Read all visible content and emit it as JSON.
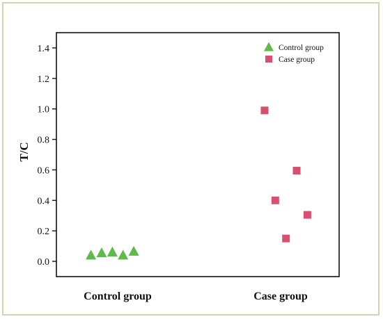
{
  "chart_data": {
    "type": "scatter",
    "title": "",
    "xlabel": "",
    "ylabel": "T/C",
    "categories": [
      "Control group",
      "Case group"
    ],
    "ylim": [
      -0.1,
      1.5
    ],
    "yticks": [
      0.0,
      0.2,
      0.4,
      0.6,
      0.8,
      1.0,
      1.2,
      1.4
    ],
    "ytick_labels": [
      "0.0",
      "0.2",
      "0.4",
      "0.6",
      "0.8",
      "1.0",
      "1.2",
      "1.4"
    ],
    "grid": false,
    "legend_position": "top-right",
    "series": [
      {
        "name": "Control group",
        "marker": "triangle",
        "color": "#5fba4a",
        "category": "Control group",
        "points": [
          {
            "x": -0.2,
            "y": 0.04
          },
          {
            "x": -0.12,
            "y": 0.055
          },
          {
            "x": -0.04,
            "y": 0.06
          },
          {
            "x": 0.04,
            "y": 0.04
          },
          {
            "x": 0.12,
            "y": 0.065
          }
        ]
      },
      {
        "name": "Case group",
        "marker": "square",
        "color": "#d84f72",
        "category": "Case group",
        "points": [
          {
            "x": -0.12,
            "y": 0.99
          },
          {
            "x": -0.04,
            "y": 0.4
          },
          {
            "x": 0.04,
            "y": 0.15
          },
          {
            "x": 0.12,
            "y": 0.595
          },
          {
            "x": 0.2,
            "y": 0.305
          }
        ]
      }
    ]
  }
}
